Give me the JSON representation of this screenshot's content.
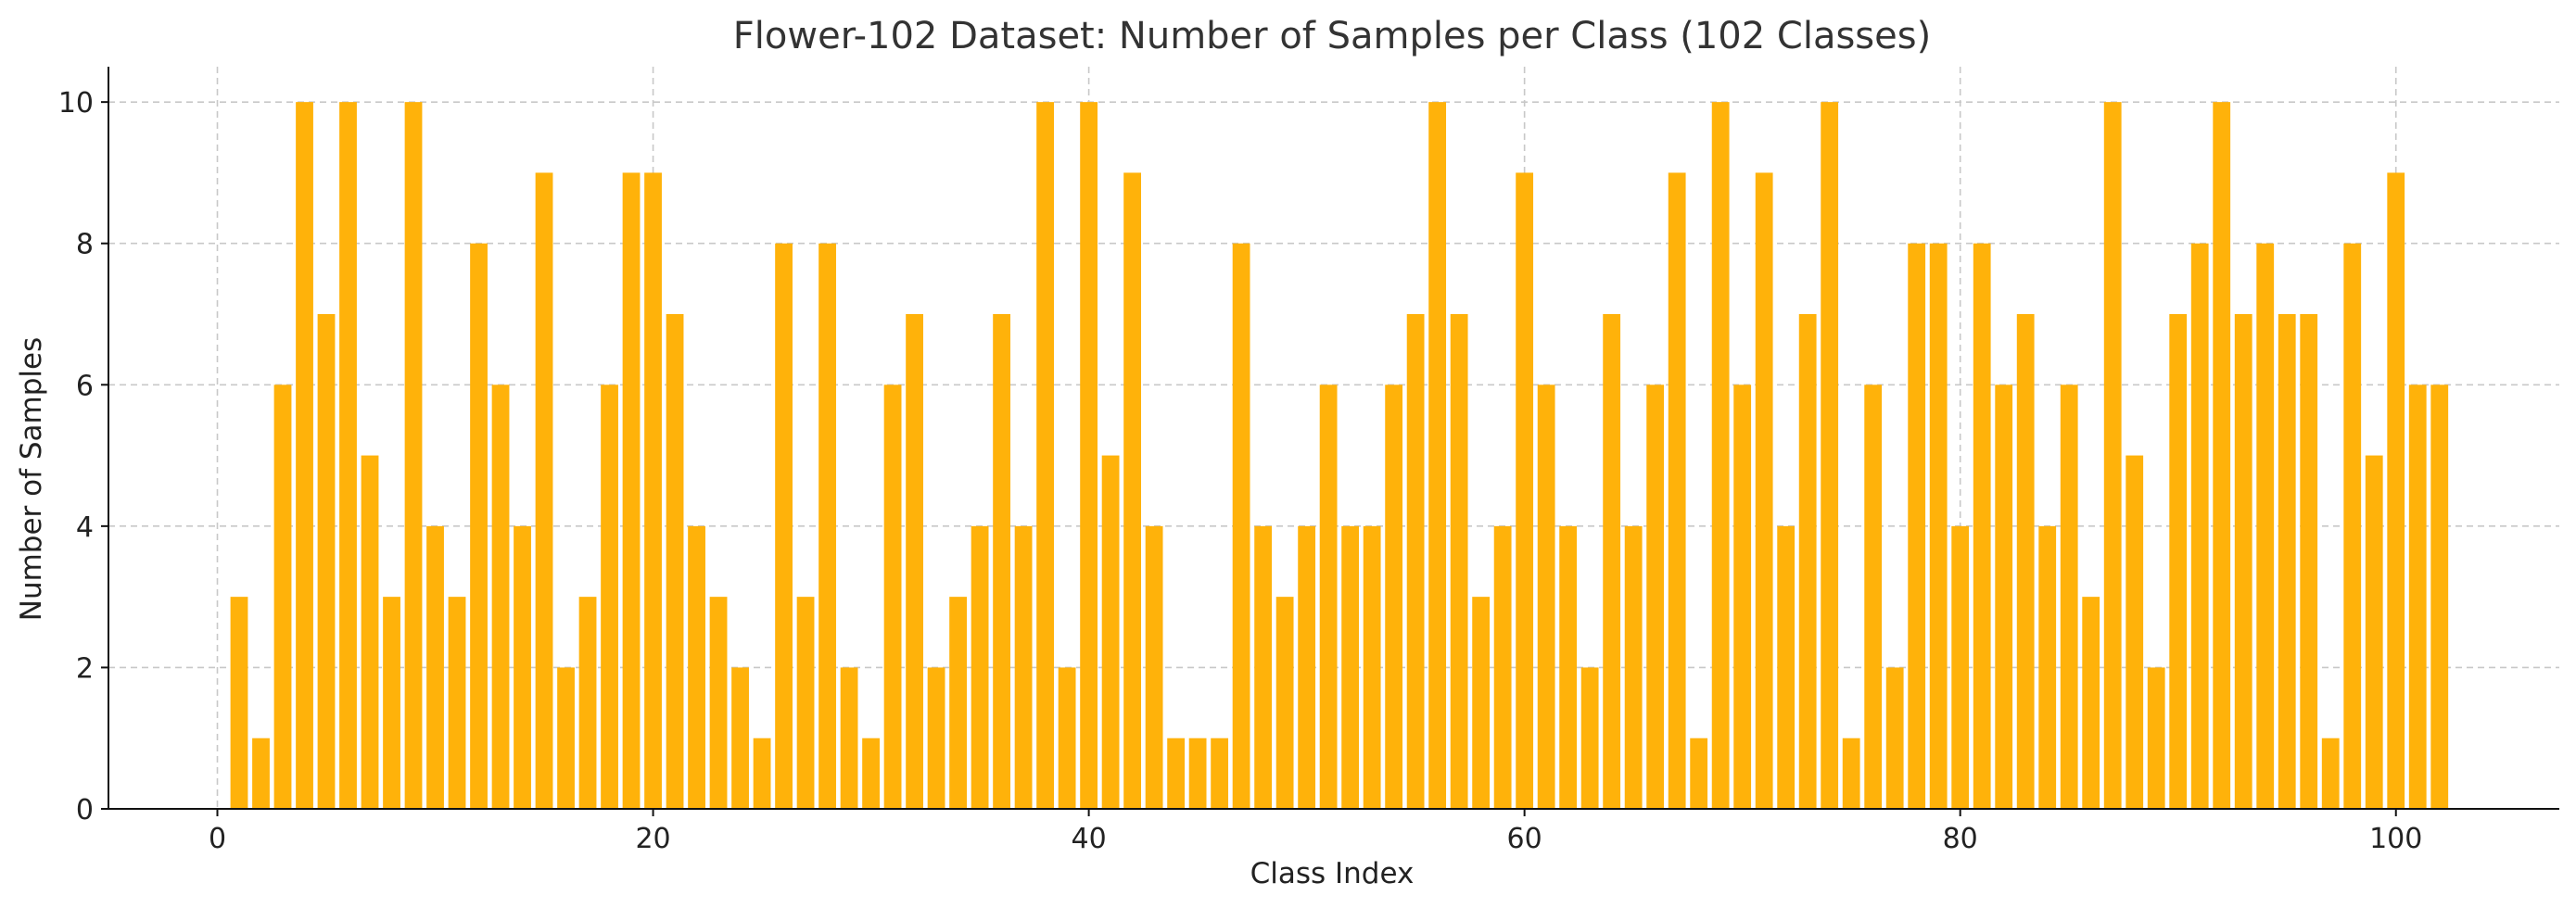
{
  "chart_data": {
    "type": "bar",
    "title": "Flower-102 Dataset: Number of Samples per Class (102 Classes)",
    "xlabel": "Class Index",
    "ylabel": "Number of Samples",
    "x": [
      1,
      2,
      3,
      4,
      5,
      6,
      7,
      8,
      9,
      10,
      11,
      12,
      13,
      14,
      15,
      16,
      17,
      18,
      19,
      20,
      21,
      22,
      23,
      24,
      25,
      26,
      27,
      28,
      29,
      30,
      31,
      32,
      33,
      34,
      35,
      36,
      37,
      38,
      39,
      40,
      41,
      42,
      43,
      44,
      45,
      46,
      47,
      48,
      49,
      50,
      51,
      52,
      53,
      54,
      55,
      56,
      57,
      58,
      59,
      60,
      61,
      62,
      63,
      64,
      65,
      66,
      67,
      68,
      69,
      70,
      71,
      72,
      73,
      74,
      75,
      76,
      77,
      78,
      79,
      80,
      81,
      82,
      83,
      84,
      85,
      86,
      87,
      88,
      89,
      90,
      91,
      92,
      93,
      94,
      95,
      96,
      97,
      98,
      99,
      100,
      101,
      102
    ],
    "values": [
      3,
      1,
      6,
      10,
      7,
      10,
      5,
      3,
      10,
      4,
      3,
      8,
      6,
      4,
      9,
      2,
      3,
      6,
      9,
      9,
      7,
      4,
      3,
      2,
      1,
      8,
      3,
      8,
      2,
      1,
      6,
      7,
      2,
      3,
      4,
      7,
      4,
      10,
      2,
      10,
      5,
      9,
      4,
      1,
      1,
      1,
      8,
      4,
      3,
      4,
      6,
      4,
      4,
      6,
      7,
      10,
      7,
      3,
      4,
      9,
      6,
      4,
      2,
      7,
      4,
      6,
      9,
      1,
      10,
      6,
      9,
      4,
      7,
      10,
      1,
      6,
      2,
      8,
      8,
      4,
      8,
      6,
      7,
      4,
      6,
      3,
      10,
      5,
      2,
      7,
      8,
      10,
      7,
      8,
      7,
      7,
      1,
      8,
      5,
      9,
      6,
      6
    ],
    "xlim": [
      -5,
      107.5
    ],
    "ylim": [
      0,
      10.5
    ],
    "x_ticks": [
      0,
      20,
      40,
      60,
      80,
      100
    ],
    "y_ticks": [
      0,
      2,
      4,
      6,
      8,
      10
    ],
    "grid": true,
    "bar_color": "#FFB20A"
  }
}
